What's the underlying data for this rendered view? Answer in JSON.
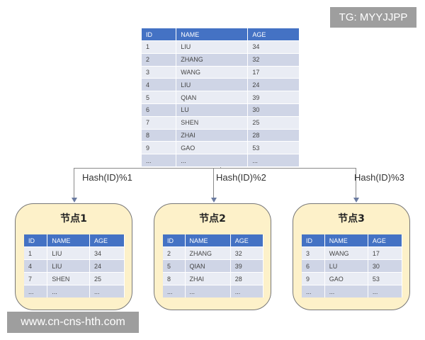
{
  "columns": [
    "ID",
    "NAME",
    "AGE"
  ],
  "main_table": [
    [
      "1",
      "LIU",
      "34"
    ],
    [
      "2",
      "ZHANG",
      "32"
    ],
    [
      "3",
      "WANG",
      "17"
    ],
    [
      "4",
      "LIU",
      "24"
    ],
    [
      "5",
      "QIAN",
      "39"
    ],
    [
      "6",
      "LU",
      "30"
    ],
    [
      "7",
      "SHEN",
      "25"
    ],
    [
      "8",
      "ZHAI",
      "28"
    ],
    [
      "9",
      "GAO",
      "53"
    ],
    [
      "...",
      "...",
      "..."
    ]
  ],
  "nodes": [
    {
      "title": "节点1",
      "hash": "Hash(ID)%1",
      "rows": [
        [
          "1",
          "LIU",
          "34"
        ],
        [
          "4",
          "LIU",
          "24"
        ],
        [
          "7",
          "SHEN",
          "25"
        ],
        [
          "...",
          "...",
          "..."
        ]
      ]
    },
    {
      "title": "节点2",
      "hash": "Hash(ID)%2",
      "rows": [
        [
          "2",
          "ZHANG",
          "32"
        ],
        [
          "5",
          "QIAN",
          "39"
        ],
        [
          "8",
          "ZHAI",
          "28"
        ],
        [
          "...",
          "...",
          "..."
        ]
      ]
    },
    {
      "title": "节点3",
      "hash": "Hash(ID)%3",
      "rows": [
        [
          "3",
          "WANG",
          "17"
        ],
        [
          "6",
          "LU",
          "30"
        ],
        [
          "9",
          "GAO",
          "53"
        ],
        [
          "...",
          "...",
          "..."
        ]
      ]
    }
  ],
  "watermark_top": "TG: MYYJJPP",
  "watermark_bottom": "www.cn-cns-hth.com",
  "colors": {
    "header": "#4472c4",
    "node_bg": "#fdf1c9"
  }
}
